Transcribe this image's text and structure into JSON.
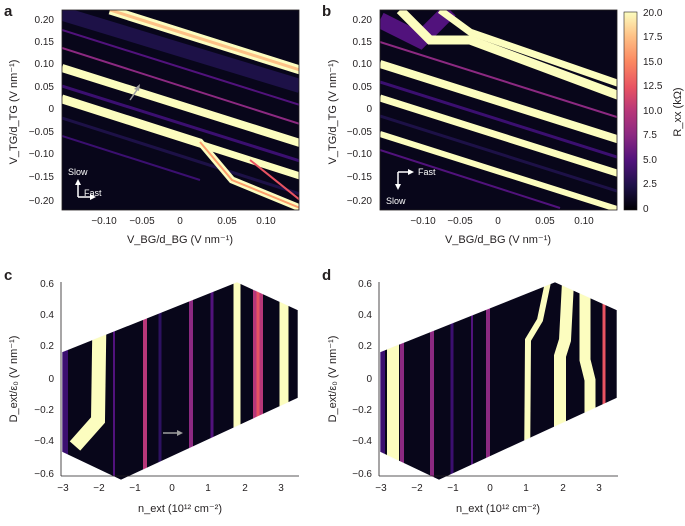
{
  "figure": {
    "panels": [
      {
        "id": "a",
        "label": "a",
        "xlabel": "V_BG/d_BG (V nm⁻¹)",
        "ylabel": "V_TG/d_TG (V nm⁻¹)",
        "xticks": [
          "−0.10",
          "−0.05",
          "0",
          "0.05",
          "0.10"
        ],
        "yticks": [
          "0.20",
          "0.15",
          "0.10",
          "0.05",
          "0",
          "−0.05",
          "−0.10",
          "−0.15",
          "−0.20"
        ],
        "sweep": {
          "slow": "Slow",
          "fast": "Fast"
        }
      },
      {
        "id": "b",
        "label": "b",
        "xlabel": "V_BG/d_BG (V nm⁻¹)",
        "ylabel": "V_TG/d_TG (V nm⁻¹)",
        "xticks": [
          "−0.10",
          "−0.05",
          "0",
          "0.05",
          "0.10"
        ],
        "yticks": [
          "0.20",
          "0.15",
          "0.10",
          "0.05",
          "0",
          "−0.05",
          "−0.10",
          "−0.15",
          "−0.20"
        ],
        "sweep": {
          "slow": "Slow",
          "fast": "Fast"
        }
      },
      {
        "id": "c",
        "label": "c",
        "xlabel": "n_ext (10¹² cm⁻²)",
        "ylabel": "D_ext/ε₀ (V nm⁻¹)",
        "xticks": [
          "−3",
          "−2",
          "−1",
          "0",
          "1",
          "2",
          "3"
        ],
        "yticks": [
          "0.6",
          "0.4",
          "0.2",
          "0",
          "−0.2",
          "−0.4",
          "−0.6"
        ]
      },
      {
        "id": "d",
        "label": "d",
        "xlabel": "n_ext (10¹² cm⁻²)",
        "ylabel": "D_ext/ε₀ (V nm⁻¹)",
        "xticks": [
          "−3",
          "−2",
          "−1",
          "0",
          "1",
          "2",
          "3"
        ],
        "yticks": [
          "0.6",
          "0.4",
          "0.2",
          "0",
          "−0.2",
          "−0.4",
          "−0.6"
        ]
      }
    ],
    "colorbar": {
      "label": "R_xx (kΩ)",
      "ticks": [
        "20.0",
        "17.5",
        "15.0",
        "12.5",
        "10.0",
        "7.5",
        "5.0",
        "2.5",
        "0"
      ],
      "colors": [
        "#fcfdbf",
        "#fec287",
        "#fb8861",
        "#e85362",
        "#b73779",
        "#8c2981",
        "#51127c",
        "#1d1147",
        "#000004"
      ]
    }
  }
}
